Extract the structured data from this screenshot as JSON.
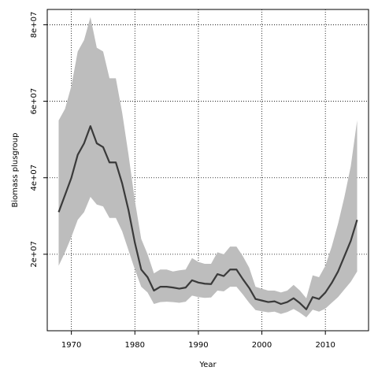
{
  "chart_data": {
    "type": "area",
    "title": "",
    "xlabel": "Year",
    "ylabel": "Biomass plusgroup",
    "xlim": [
      1966.2,
      2016.8
    ],
    "ylim": [
      0,
      84000000
    ],
    "x_ticks": [
      1970,
      1980,
      1990,
      2000,
      2010
    ],
    "x_tick_labels": [
      "1970",
      "1980",
      "1990",
      "2000",
      "2010"
    ],
    "y_ticks": [
      20000000,
      40000000,
      60000000,
      80000000
    ],
    "y_tick_labels": [
      "2e+07",
      "4e+07",
      "6e+07",
      "8e+07"
    ],
    "grid": true,
    "legend": "none",
    "colors": {
      "band": "#bdbdbd",
      "line": "#3a3a3a",
      "grid": "#000000"
    },
    "x": [
      1968,
      1969,
      1970,
      1971,
      1972,
      1973,
      1974,
      1975,
      1976,
      1977,
      1978,
      1979,
      1980,
      1981,
      1982,
      1983,
      1984,
      1985,
      1986,
      1987,
      1988,
      1989,
      1990,
      1991,
      1992,
      1993,
      1994,
      1995,
      1996,
      1997,
      1998,
      1999,
      2000,
      2001,
      2002,
      2003,
      2004,
      2005,
      2006,
      2007,
      2008,
      2009,
      2010,
      2011,
      2012,
      2013,
      2014,
      2015
    ],
    "series": [
      {
        "name": "",
        "values": [
          31000000,
          35500000,
          40000000,
          46000000,
          49000000,
          53500000,
          49000000,
          48000000,
          44000000,
          44000000,
          38500000,
          31500000,
          23000000,
          16000000,
          14000000,
          10500000,
          11500000,
          11500000,
          11300000,
          11000000,
          11300000,
          13200000,
          12600000,
          12300000,
          12200000,
          14800000,
          14300000,
          16000000,
          16000000,
          13500000,
          11200000,
          8300000,
          7900000,
          7500000,
          7700000,
          7000000,
          7500000,
          8500000,
          7200000,
          5600000,
          8800000,
          8300000,
          10000000,
          12500000,
          15500000,
          19500000,
          23500000,
          29000000
        ]
      }
    ],
    "band": {
      "upper": [
        55000000,
        58000000,
        64000000,
        73000000,
        76000000,
        82000000,
        74000000,
        73000000,
        66000000,
        66000000,
        57000000,
        46000000,
        34000000,
        24000000,
        20000000,
        15000000,
        16000000,
        16000000,
        15500000,
        15800000,
        16000000,
        19000000,
        18000000,
        17500000,
        17500000,
        20500000,
        20000000,
        22000000,
        22000000,
        19500000,
        16500000,
        11500000,
        11000000,
        10500000,
        10500000,
        10000000,
        10500000,
        12000000,
        10500000,
        8500000,
        14500000,
        14000000,
        17000000,
        22000000,
        28000000,
        35000000,
        43000000,
        55000000
      ],
      "lower": [
        17000000,
        20500000,
        24500000,
        29000000,
        31000000,
        35000000,
        33000000,
        32500000,
        29500000,
        29500000,
        26000000,
        21000000,
        16000000,
        11500000,
        10000000,
        7000000,
        7500000,
        7600000,
        7500000,
        7300000,
        7600000,
        9200000,
        8800000,
        8600000,
        8700000,
        10500000,
        10300000,
        11500000,
        11500000,
        9500000,
        7300000,
        5400000,
        5100000,
        4800000,
        5000000,
        4400000,
        4900000,
        5700000,
        4700000,
        3500000,
        5500000,
        5000000,
        5800000,
        7300000,
        8800000,
        10800000,
        12800000,
        15500000
      ]
    }
  }
}
